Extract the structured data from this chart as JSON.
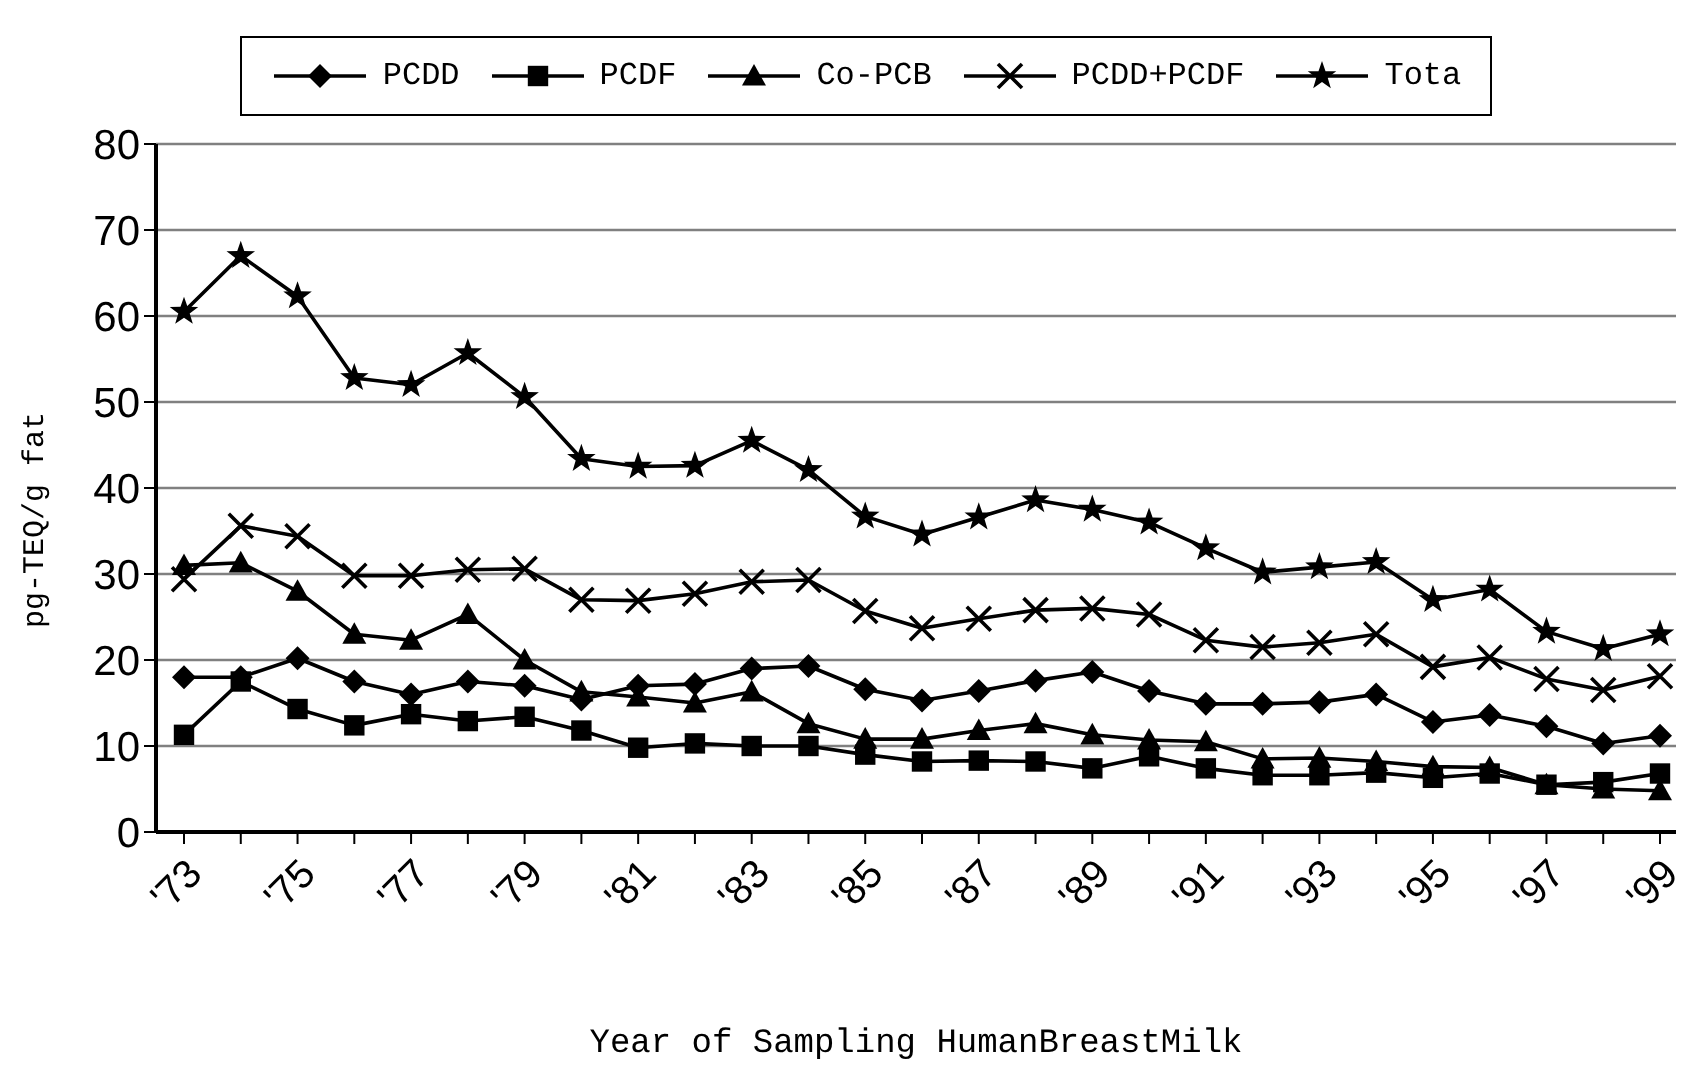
{
  "chart_data": {
    "type": "line",
    "xlabel": "Year of Sampling HumanBreastMilk",
    "ylabel": "pg-TEQ/g fat",
    "categories": [
      "'73",
      null,
      "'75",
      null,
      "'77",
      null,
      "'79",
      null,
      "'81",
      null,
      "'83",
      null,
      "'85",
      null,
      "'87",
      null,
      "'89",
      null,
      "'91",
      null,
      "'93",
      null,
      "'95",
      null,
      "'97",
      null,
      "'99"
    ],
    "series": [
      {
        "name": "PCDD",
        "color": "#000000",
        "marker": "diamond",
        "values": [
          18,
          18,
          20.2,
          17.5,
          16,
          17.5,
          17,
          15.4,
          17,
          17.2,
          19,
          19.3,
          16.6,
          15.3,
          16.4,
          17.6,
          18.6,
          16.4,
          14.9,
          14.9,
          15.1,
          16,
          12.8,
          13.6,
          12.3,
          10.3,
          11.2
        ]
      },
      {
        "name": "PCDF",
        "color": "#000000",
        "marker": "square",
        "values": [
          11.3,
          17.5,
          14.3,
          12.4,
          13.7,
          12.9,
          13.4,
          11.8,
          9.8,
          10.3,
          10,
          10,
          9,
          8.2,
          8.3,
          8.2,
          7.4,
          8.8,
          7.4,
          6.6,
          6.6,
          6.9,
          6.3,
          6.8,
          5.5,
          5.8,
          6.8
        ]
      },
      {
        "name": "Co-PCB",
        "color": "#000000",
        "marker": "triangle",
        "values": [
          31,
          31.3,
          28,
          23,
          22.3,
          25.3,
          20,
          16.3,
          15.7,
          15,
          16.3,
          12.6,
          10.8,
          10.8,
          11.8,
          12.6,
          11.3,
          10.7,
          10.5,
          8.5,
          8.6,
          8.2,
          7.6,
          7.5,
          5.5,
          5,
          4.8
        ]
      },
      {
        "name": "PCDD+PCDF",
        "color": "#000000",
        "marker": "cross",
        "values": [
          29.4,
          35.6,
          34.4,
          29.8,
          29.8,
          30.5,
          30.6,
          27,
          26.9,
          27.7,
          29.1,
          29.3,
          25.7,
          23.7,
          24.8,
          25.8,
          26,
          25.3,
          22.3,
          21.5,
          22,
          23,
          19.2,
          20.3,
          17.8,
          16.5,
          18.1
        ]
      },
      {
        "name": "Tota",
        "color": "#000000",
        "marker": "star",
        "values": [
          60.5,
          67,
          62.3,
          52.8,
          52,
          55.7,
          50.6,
          43.4,
          42.5,
          42.6,
          45.5,
          42.1,
          36.7,
          34.6,
          36.6,
          38.6,
          37.5,
          36,
          33,
          30.2,
          30.8,
          31.4,
          27,
          28.2,
          23.3,
          21.3,
          23
        ]
      }
    ],
    "ylim": [
      0,
      80
    ],
    "yticks": [
      0,
      10,
      20,
      30,
      40,
      50,
      60,
      70,
      80
    ],
    "grid": "y",
    "legend": "top",
    "line_style": "solid"
  }
}
